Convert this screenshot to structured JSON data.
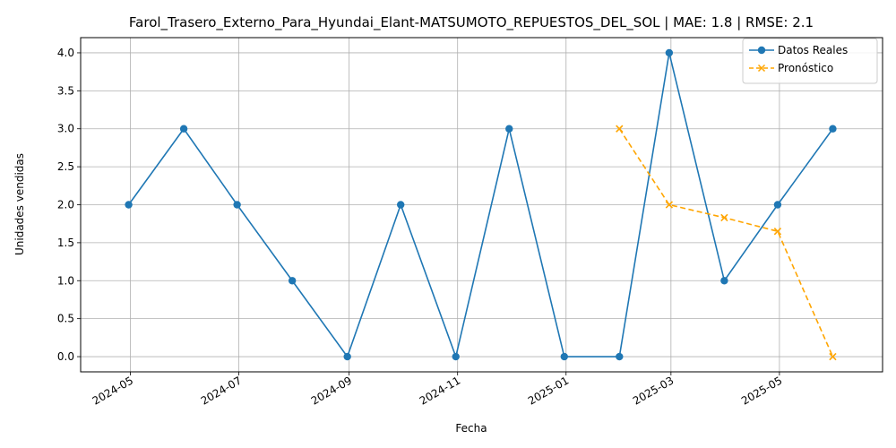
{
  "chart_data": {
    "type": "line",
    "title": "Farol_Trasero_Externo_Para_Hyundai_Elant-MATSUMOTO_REPUESTOS_DEL_SOL | MAE: 1.8 | RMSE: 2.1",
    "xlabel": "Fecha",
    "ylabel": "Unidades vendidas",
    "x_ticks": [
      "2024-05",
      "2024-07",
      "2024-09",
      "2024-11",
      "2025-01",
      "2025-03",
      "2025-05"
    ],
    "y_ticks": [
      "0.0",
      "0.5",
      "1.0",
      "1.5",
      "2.0",
      "2.5",
      "3.0",
      "3.5",
      "4.0"
    ],
    "ylim": [
      -0.2,
      4.2
    ],
    "xlim": [
      "2024-04-03",
      "2025-06-28"
    ],
    "grid": true,
    "legend_position": "top-right",
    "series": [
      {
        "name": "Datos Reales",
        "color": "#1f77b4",
        "marker": "circle",
        "line_style": "solid",
        "x": [
          "2024-04-30",
          "2024-05-31",
          "2024-06-30",
          "2024-07-31",
          "2024-08-31",
          "2024-09-30",
          "2024-10-31",
          "2024-11-30",
          "2024-12-31",
          "2025-01-31",
          "2025-02-28",
          "2025-03-31",
          "2025-04-30",
          "2025-05-31"
        ],
        "values": [
          2,
          3,
          2,
          1,
          0,
          2,
          0,
          3,
          0,
          0,
          4,
          1,
          2,
          3
        ]
      },
      {
        "name": "Pronóstico",
        "color": "#ffa500",
        "marker": "x",
        "line_style": "dashed",
        "x": [
          "2025-01-31",
          "2025-02-28",
          "2025-03-31",
          "2025-04-30",
          "2025-05-31"
        ],
        "values": [
          3.0,
          2.0,
          1.83,
          1.65,
          0.0
        ]
      }
    ]
  }
}
